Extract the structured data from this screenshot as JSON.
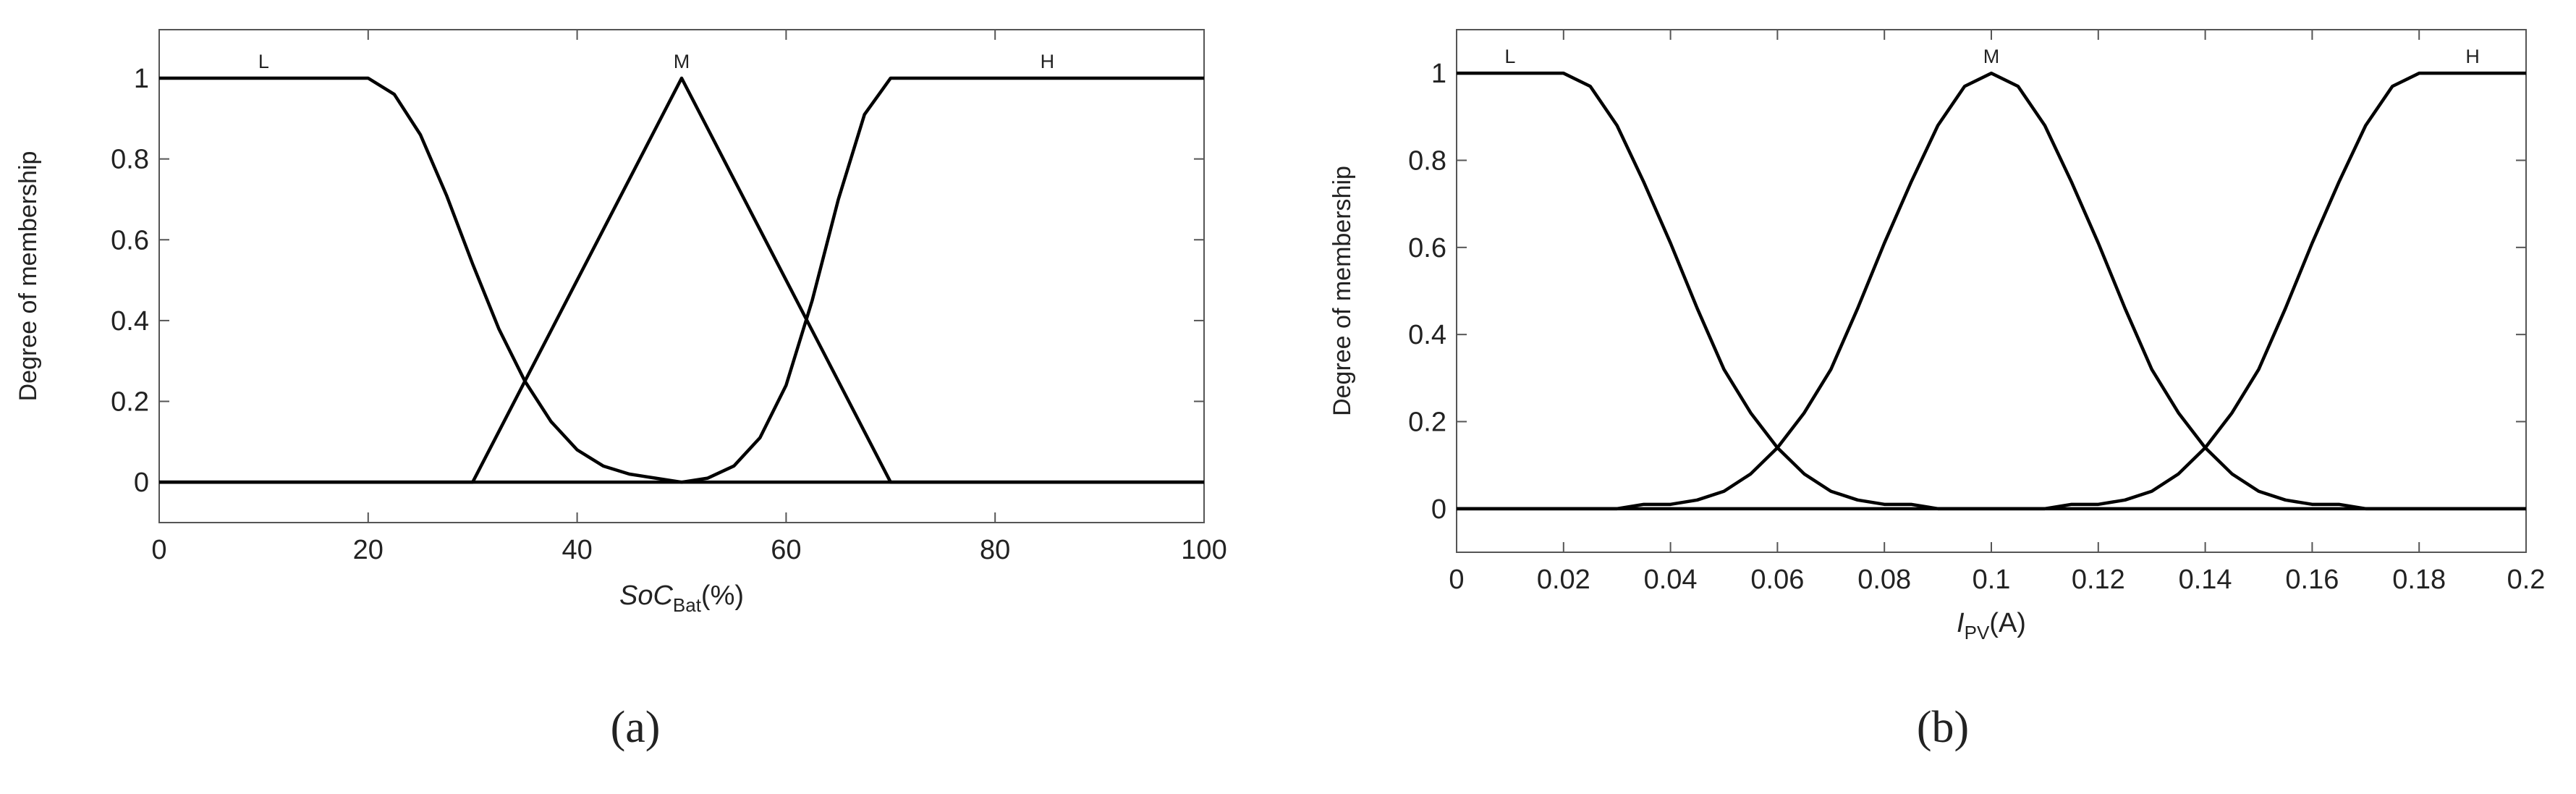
{
  "chart_data": [
    {
      "type": "line",
      "x": [
        0,
        2.5,
        5,
        7.5,
        10,
        12.5,
        15,
        17.5,
        20,
        22.5,
        25,
        27.5,
        30,
        32.5,
        35,
        37.5,
        40,
        42.5,
        45,
        47.5,
        50,
        52.5,
        55,
        57.5,
        60,
        62.5,
        65,
        67.5,
        70,
        72.5,
        75,
        77.5,
        80,
        82.5,
        85,
        87.5,
        90,
        92.5,
        95,
        97.5,
        100
      ],
      "series": [
        {
          "name": "L",
          "color": "#000000",
          "values": [
            1,
            1,
            1,
            1,
            1,
            1,
            1,
            1,
            1,
            0.96,
            0.86,
            0.71,
            0.54,
            0.38,
            0.25,
            0.15,
            0.08,
            0.04,
            0.02,
            0.01,
            0,
            0,
            0,
            0,
            0,
            0,
            0,
            0,
            0,
            0,
            0,
            0,
            0,
            0,
            0,
            0,
            0,
            0,
            0,
            0,
            0
          ]
        },
        {
          "name": "M",
          "color": "#000000",
          "values": [
            0,
            0,
            0,
            0,
            0,
            0,
            0,
            0,
            0,
            0,
            0,
            0,
            0,
            0.125,
            0.25,
            0.375,
            0.5,
            0.625,
            0.75,
            0.875,
            1,
            0.875,
            0.75,
            0.625,
            0.5,
            0.375,
            0.25,
            0.125,
            0,
            0,
            0,
            0,
            0,
            0,
            0,
            0,
            0,
            0,
            0,
            0,
            0
          ]
        },
        {
          "name": "H",
          "color": "#000000",
          "values": [
            0,
            0,
            0,
            0,
            0,
            0,
            0,
            0,
            0,
            0,
            0,
            0,
            0,
            0,
            0,
            0,
            0,
            0,
            0,
            0,
            0,
            0.01,
            0.04,
            0.11,
            0.24,
            0.45,
            0.7,
            0.91,
            1,
            1,
            1,
            1,
            1,
            1,
            1,
            1,
            1,
            1,
            1,
            1,
            1
          ]
        }
      ],
      "xlim": [
        0,
        100
      ],
      "ylim": [
        -0.1,
        1.12
      ],
      "xticks": [
        0,
        20,
        40,
        60,
        80,
        100
      ],
      "yticks": [
        0,
        0.2,
        0.4,
        0.6,
        0.8,
        1
      ],
      "ylabel": "Degree of membership",
      "xlabel": {
        "symbol": "SoC",
        "subscript": "Bat",
        "unit": "(%)"
      },
      "caption": "(a)"
    },
    {
      "type": "line",
      "x": [
        0,
        0.005,
        0.01,
        0.015,
        0.02,
        0.025,
        0.03,
        0.035,
        0.04,
        0.045,
        0.05,
        0.055,
        0.06,
        0.065,
        0.07,
        0.075,
        0.08,
        0.085,
        0.09,
        0.095,
        0.1,
        0.105,
        0.11,
        0.115,
        0.12,
        0.125,
        0.13,
        0.135,
        0.14,
        0.145,
        0.15,
        0.155,
        0.16,
        0.165,
        0.17,
        0.175,
        0.18,
        0.185,
        0.19,
        0.195,
        0.2
      ],
      "series": [
        {
          "name": "L",
          "color": "#000000",
          "values": [
            1,
            1,
            1,
            1,
            1,
            0.97,
            0.88,
            0.75,
            0.61,
            0.46,
            0.32,
            0.22,
            0.14,
            0.08,
            0.04,
            0.02,
            0.01,
            0.01,
            0,
            0,
            0,
            0,
            0,
            0,
            0,
            0,
            0,
            0,
            0,
            0,
            0,
            0,
            0,
            0,
            0,
            0,
            0,
            0,
            0,
            0,
            0
          ]
        },
        {
          "name": "M",
          "color": "#000000",
          "values": [
            0,
            0,
            0,
            0,
            0,
            0,
            0,
            0.01,
            0.01,
            0.02,
            0.04,
            0.08,
            0.14,
            0.22,
            0.32,
            0.46,
            0.61,
            0.75,
            0.88,
            0.97,
            1,
            0.97,
            0.88,
            0.75,
            0.61,
            0.46,
            0.32,
            0.22,
            0.14,
            0.08,
            0.04,
            0.02,
            0.01,
            0.01,
            0,
            0,
            0,
            0,
            0,
            0,
            0
          ]
        },
        {
          "name": "H",
          "color": "#000000",
          "values": [
            0,
            0,
            0,
            0,
            0,
            0,
            0,
            0,
            0,
            0,
            0,
            0,
            0,
            0,
            0,
            0,
            0,
            0,
            0,
            0,
            0,
            0,
            0,
            0.01,
            0.01,
            0.02,
            0.04,
            0.08,
            0.14,
            0.22,
            0.32,
            0.46,
            0.61,
            0.75,
            0.88,
            0.97,
            1,
            1,
            1,
            1,
            1
          ]
        }
      ],
      "xlim": [
        0,
        0.2
      ],
      "ylim": [
        -0.1,
        1.1
      ],
      "xticks": [
        0,
        0.02,
        0.04,
        0.06,
        0.08,
        0.1,
        0.12,
        0.14,
        0.16,
        0.18,
        0.2
      ],
      "yticks": [
        0,
        0.2,
        0.4,
        0.6,
        0.8,
        1
      ],
      "ylabel": "Degree of membership",
      "xlabel": {
        "symbol": "I",
        "subscript": "PV",
        "unit": "(A)"
      },
      "caption": "(b)"
    }
  ]
}
